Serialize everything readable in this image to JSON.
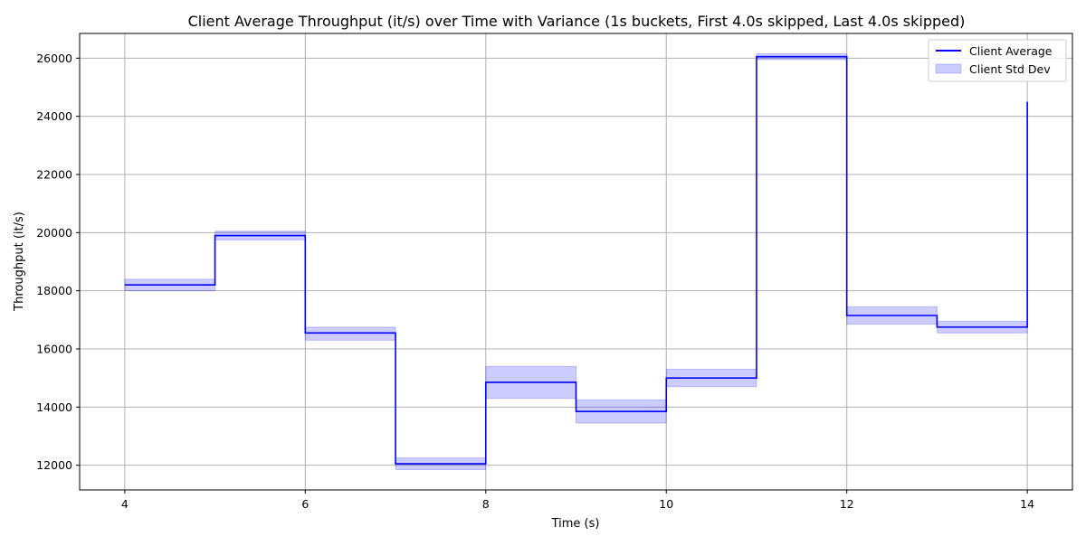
{
  "chart_data": {
    "type": "line",
    "title": "Client Average Throughput (it/s) over Time with Variance (1s buckets, First 4.0s skipped, Last 4.0s skipped)",
    "xlabel": "Time (s)",
    "ylabel": "Throughput (it/s)",
    "xlim": [
      3.5,
      14.5
    ],
    "ylim": [
      11150,
      26850
    ],
    "x_ticks": [
      4,
      6,
      8,
      10,
      12,
      14
    ],
    "y_ticks": [
      12000,
      14000,
      16000,
      18000,
      20000,
      22000,
      24000,
      26000
    ],
    "grid": true,
    "legend_position": "top-right",
    "step": "post",
    "x": [
      4,
      5,
      6,
      7,
      8,
      9,
      10,
      11,
      12,
      13,
      14
    ],
    "series": [
      {
        "name": "Client Average",
        "kind": "step-line",
        "color": "#0000ff",
        "values": [
          18200,
          19900,
          16550,
          12050,
          14850,
          13850,
          15000,
          26050,
          17150,
          16750,
          24500
        ]
      },
      {
        "name": "Client Std Dev",
        "kind": "band",
        "color": "#0000ff",
        "opacity": 0.2,
        "lower": [
          18000,
          19750,
          16300,
          11850,
          14300,
          13450,
          14700,
          25950,
          16850,
          16550
        ],
        "upper": [
          18400,
          20050,
          16750,
          12250,
          15400,
          14250,
          15300,
          26150,
          17450,
          16950
        ]
      }
    ]
  }
}
